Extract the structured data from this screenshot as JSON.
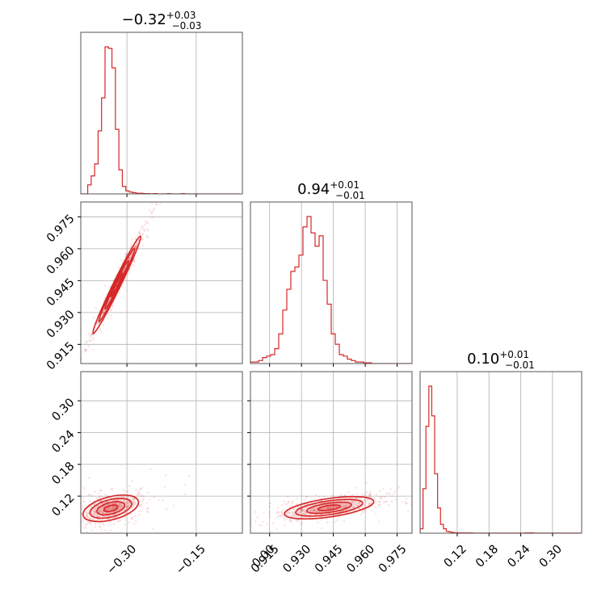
{
  "chart_data": {
    "type": "corner",
    "color": "#d62728",
    "grid": true,
    "parameters": [
      {
        "title_value": "−0.32",
        "title_plus": "+0.03",
        "title_minus": "−0.03",
        "range": [
          -0.4,
          -0.05
        ]
      },
      {
        "title_value": "0.94",
        "title_plus": "+0.01",
        "title_minus": "−0.01",
        "range": [
          0.906,
          0.982
        ]
      },
      {
        "title_value": "0.10",
        "title_plus": "+0.01",
        "title_minus": "−0.01",
        "range": [
          0.05,
          0.355
        ]
      }
    ],
    "ticks": {
      "p0": {
        "values": [
          -0.3,
          -0.15,
          0.0
        ],
        "labels": [
          "−0.30",
          "−0.15",
          "0.00"
        ]
      },
      "p1": {
        "values": [
          0.915,
          0.93,
          0.945,
          0.96,
          0.975
        ],
        "labels": [
          "0.915",
          "0.930",
          "0.945",
          "0.960",
          "0.975"
        ]
      },
      "p2": {
        "values": [
          0.12,
          0.18,
          0.24,
          0.3
        ],
        "labels": [
          "0.12",
          "0.18",
          "0.24",
          "0.30"
        ]
      }
    },
    "histograms": [
      {
        "param": 0,
        "bin_start": -0.4,
        "bin_width": 0.0075,
        "counts": [
          0,
          0,
          0.06,
          0.12,
          0.2,
          0.42,
          0.64,
          0.98,
          0.97,
          0.84,
          0.43,
          0.16,
          0.05,
          0.02,
          0.012,
          0.008,
          0.004,
          0.004,
          0.002,
          0.002,
          0,
          0.002,
          0,
          0,
          0,
          0.002,
          0,
          0,
          0,
          0.002,
          0,
          0,
          0,
          0,
          0,
          0,
          0,
          0,
          0,
          0,
          0,
          0,
          0,
          0,
          0,
          0
        ]
      },
      {
        "param": 1,
        "bin_start": 0.906,
        "bin_width": 0.0019,
        "counts": [
          0.01,
          0.01,
          0.02,
          0.04,
          0.05,
          0.06,
          0.1,
          0.2,
          0.36,
          0.5,
          0.62,
          0.65,
          0.73,
          0.92,
          0.99,
          0.88,
          0.79,
          0.86,
          0.56,
          0.4,
          0.2,
          0.13,
          0.06,
          0.05,
          0.03,
          0.02,
          0.01,
          0.01,
          0.005,
          0.005,
          0,
          0,
          0,
          0,
          0,
          0,
          0,
          0,
          0,
          0
        ]
      },
      {
        "param": 2,
        "bin_start": 0.05,
        "bin_width": 0.0055,
        "counts": [
          0.03,
          0.3,
          0.72,
          0.99,
          0.79,
          0.4,
          0.17,
          0.06,
          0.03,
          0.012,
          0.008,
          0.004,
          0.003,
          0.003,
          0.002,
          0.002,
          0.002,
          0.002,
          0.001,
          0.001,
          0.001,
          0.001,
          0.001,
          0.001,
          0.001,
          0.001,
          0.001,
          0.001,
          0.001,
          0.001,
          0.001,
          0.001,
          0.001,
          0.001,
          0.001,
          0.001,
          0.002,
          0.002,
          0.002,
          0.001,
          0.001,
          0.001,
          0.001,
          0.001,
          0.001,
          0.001,
          0.001,
          0.001,
          0.001,
          0.001,
          0.001,
          0.001,
          0.001,
          0.001,
          0.001
        ]
      }
    ],
    "pairs": [
      {
        "x_param": 0,
        "y_param": 1,
        "mean": [
          -0.322,
          0.943
        ],
        "sigma": [
          0.026,
          0.0115
        ],
        "corr": 0.985
      },
      {
        "x_param": 0,
        "y_param": 2,
        "mean": [
          -0.335,
          0.097
        ],
        "sigma": [
          0.03,
          0.0125
        ],
        "corr": 0.45
      },
      {
        "x_param": 1,
        "y_param": 2,
        "mean": [
          0.943,
          0.098
        ],
        "sigma": [
          0.0105,
          0.0105
        ],
        "corr": 0.55
      }
    ],
    "contour_levels_sigma": [
      0.5,
      1.0,
      1.5,
      2.0
    ]
  }
}
